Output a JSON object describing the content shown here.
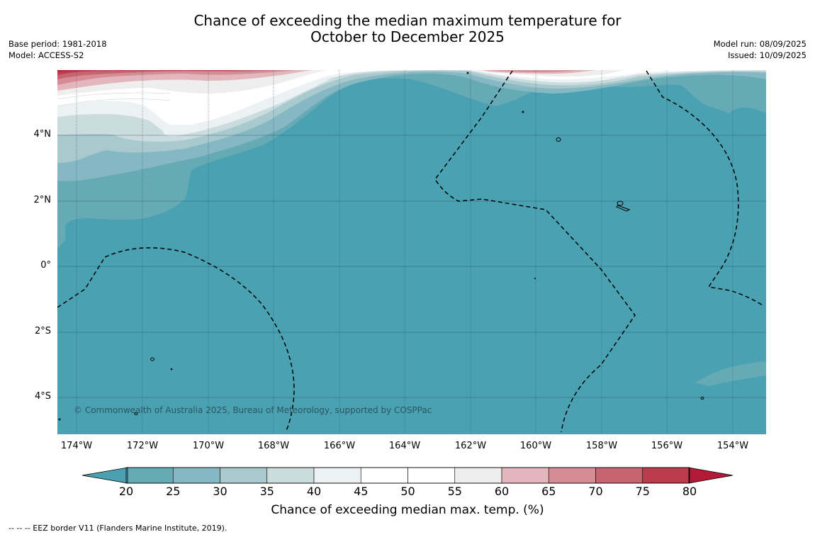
{
  "title_line1": "Chance of exceeding the median maximum temperature for",
  "title_line2": "October to December 2025",
  "meta_left": {
    "base_period": "Base period: 1981-2018",
    "model": "Model: ACCESS-S2"
  },
  "meta_right": {
    "model_run": "Model run: 08/09/2025",
    "issued": "Issued: 10/09/2025"
  },
  "copyright": "© Commonwealth of Australia 2025, Bureau of Meteorology, supported by COSPPac",
  "map": {
    "lon_labels": [
      "174°W",
      "172°W",
      "170°W",
      "168°W",
      "166°W",
      "164°W",
      "162°W",
      "160°W",
      "158°W",
      "156°W",
      "154°W"
    ],
    "lat_labels": [
      "4°N",
      "2°N",
      "0°",
      "2°S",
      "4°S"
    ]
  },
  "colorbar": {
    "ticks": [
      "20",
      "25",
      "30",
      "35",
      "40",
      "45",
      "50",
      "55",
      "60",
      "65",
      "70",
      "75",
      "80"
    ],
    "colors": [
      "#66aab6",
      "#85b8c2",
      "#a8c9ce",
      "#cbdcdf",
      "#ecf2f3",
      "#ffffff",
      "#ffffff",
      "#eeeeee",
      "#e2b6bc",
      "#d68c95",
      "#c8646f",
      "#bd3b4d"
    ],
    "under_color": "#4aa0b1",
    "over_color": "#b21a36",
    "label": "Chance of exceeding median max. temp. (%)"
  },
  "footnote": "--  --  -- EEZ border V11 (Flanders Marine Institute, 2019).",
  "legend_colors": {
    "base_teal": "#49a1b2"
  }
}
